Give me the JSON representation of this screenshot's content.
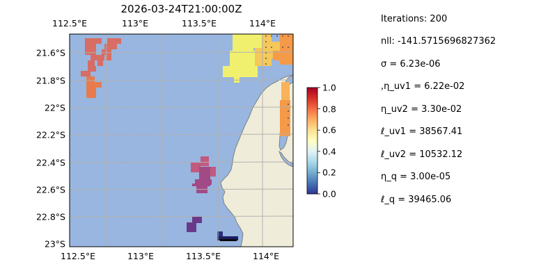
{
  "title": "2026-03-24T21:00:00Z",
  "lon_ticks": [
    "112.5°E",
    "113°E",
    "113.5°E",
    "114°E"
  ],
  "lat_ticks": [
    "21.6°S",
    "21.8°S",
    "22°S",
    "22.2°S",
    "22.4°S",
    "22.6°S",
    "22.8°S",
    "23°S"
  ],
  "colorbar_ticks": [
    "1.0",
    "0.8",
    "0.6",
    "0.4",
    "0.2",
    "0.0"
  ],
  "colors": {
    "ocean": "#98b6e0",
    "land": "#efedd9",
    "coast": "#808080",
    "grid": "#b0b0b0"
  },
  "params": {
    "iterations": "Iterations: 200",
    "nll": "nll: -141.5715696827362",
    "sigma": "σ = 6.23e-06",
    "eta_uv1": ",η_uv1 = 6.22e-02",
    "eta_uv2": "η_uv2 = 3.30e-02",
    "ell_uv1": "ℓ_uv1 = 38567.41",
    "ell_uv2": "ℓ_uv2 = 10532.12",
    "eta_q": "η_q = 3.00e-05",
    "ell_q": "ℓ_q = 39465.06"
  }
}
